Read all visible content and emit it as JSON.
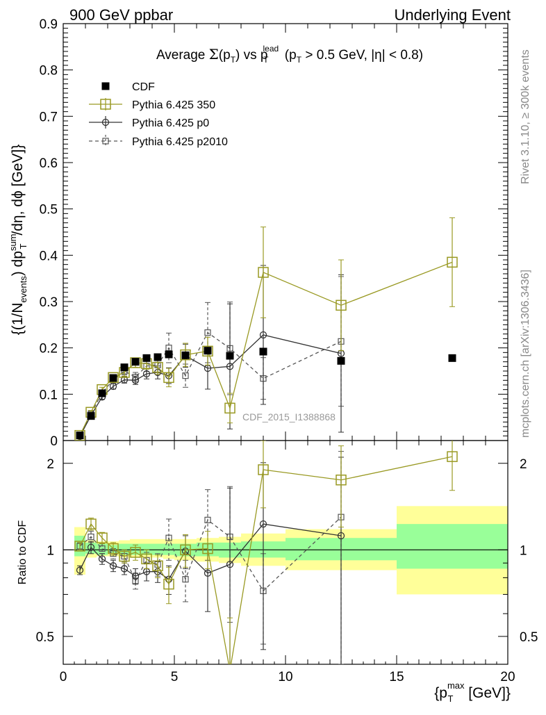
{
  "header": {
    "left": "900 GeV ppbar",
    "right": "Underlying Event"
  },
  "side_labels": {
    "rivet": "Rivet 3.1.10, ≥ 300k events",
    "mcplots": "mcplots.cern.ch [arXiv:1306.3436]"
  },
  "watermark": "CDF_2015_I1388868",
  "chart_data": [
    {
      "type": "scatter",
      "title": "Average Σ(p_T) vs p_T^lead (p_T > 0.5 GeV, |η| < 0.8)",
      "ylabel": "{(1/N_events) dp_T^sum/dη, dϕ [GeV]}",
      "xlim": [
        0,
        20
      ],
      "ylim": [
        0,
        0.9
      ],
      "yticks": [
        "0",
        "0.1",
        "0.2",
        "0.3",
        "0.4",
        "0.5",
        "0.6",
        "0.7",
        "0.8",
        "0.9"
      ],
      "legend_position": "top-left",
      "series": [
        {
          "name": "CDF",
          "color": "#000000",
          "marker": "filled-square",
          "line": "none",
          "x": [
            0.75,
            1.25,
            1.75,
            2.25,
            2.75,
            3.25,
            3.75,
            4.25,
            4.75,
            5.5,
            6.5,
            7.5,
            9.0,
            12.5,
            17.5
          ],
          "y": [
            0.011,
            0.053,
            0.102,
            0.135,
            0.158,
            0.17,
            0.178,
            0.18,
            0.186,
            0.184,
            0.194,
            0.183,
            0.192,
            0.172,
            0.178
          ]
        },
        {
          "name": "Pythia 6.425 350",
          "color": "#999922",
          "marker": "open-square",
          "line": "solid",
          "x": [
            0.75,
            1.25,
            1.75,
            2.25,
            2.75,
            3.25,
            3.75,
            4.25,
            4.75,
            5.5,
            6.5,
            7.5,
            9.0,
            12.5,
            17.5
          ],
          "y": [
            0.011,
            0.061,
            0.11,
            0.136,
            0.147,
            0.168,
            0.166,
            0.158,
            0.136,
            0.185,
            0.193,
            0.07,
            0.363,
            0.292,
            0.385
          ],
          "err": [
            0.002,
            0.004,
            0.005,
            0.006,
            0.008,
            0.01,
            0.012,
            0.015,
            0.02,
            0.025,
            0.03,
            0.032,
            0.098,
            0.098,
            0.096
          ]
        },
        {
          "name": "Pythia 6.425 p0",
          "color": "#333333",
          "marker": "open-circle",
          "line": "solid",
          "x": [
            0.75,
            1.25,
            1.75,
            2.25,
            2.75,
            3.25,
            3.75,
            4.25,
            4.75,
            5.5,
            6.5,
            7.5,
            9.0,
            12.5
          ],
          "y": [
            0.009,
            0.054,
            0.094,
            0.117,
            0.131,
            0.13,
            0.144,
            0.147,
            0.14,
            0.183,
            0.156,
            0.16,
            0.228,
            0.188
          ],
          "err": [
            0.002,
            0.004,
            0.005,
            0.006,
            0.007,
            0.009,
            0.011,
            0.014,
            0.017,
            0.025,
            0.045,
            0.135,
            0.15,
            0.17
          ]
        },
        {
          "name": "Pythia 6.425 p2010",
          "color": "#555555",
          "marker": "open-square-small",
          "line": "dashed",
          "x": [
            0.75,
            1.25,
            1.75,
            2.25,
            2.75,
            3.25,
            3.75,
            4.25,
            4.75,
            5.5,
            6.5,
            7.5,
            9.0,
            12.5
          ],
          "y": [
            0.011,
            0.058,
            0.103,
            0.131,
            0.15,
            0.137,
            0.161,
            0.163,
            0.2,
            0.14,
            0.233,
            0.199,
            0.134,
            0.214
          ],
          "err": [
            0.002,
            0.004,
            0.005,
            0.006,
            0.008,
            0.01,
            0.012,
            0.015,
            0.032,
            0.025,
            0.065,
            0.1,
            0.045,
            0.14
          ]
        }
      ]
    },
    {
      "type": "scatter",
      "ylabel": "Ratio to CDF",
      "xlabel": "{p_T^max [GeV]}",
      "xlim": [
        0,
        20
      ],
      "ylim": [
        0.4,
        2.4
      ],
      "ylog": true,
      "xticks": [
        "0",
        "5",
        "10",
        "15",
        "20"
      ],
      "yticks": [
        "0.5",
        "1",
        "2"
      ],
      "bands": {
        "x_edges": [
          0.5,
          1.0,
          1.5,
          2.0,
          2.5,
          3.0,
          3.5,
          4.0,
          4.5,
          5.0,
          6.0,
          7.0,
          8.0,
          10.0,
          15.0,
          20.0
        ],
        "inner": [
          [
            0.95,
            1.12
          ],
          [
            0.97,
            1.06
          ],
          [
            0.96,
            1.05
          ],
          [
            0.97,
            1.04
          ],
          [
            0.96,
            1.05
          ],
          [
            0.96,
            1.05
          ],
          [
            0.96,
            1.05
          ],
          [
            0.96,
            1.05
          ],
          [
            0.96,
            1.05
          ],
          [
            0.95,
            1.05
          ],
          [
            0.95,
            1.06
          ],
          [
            0.94,
            1.06
          ],
          [
            0.94,
            1.07
          ],
          [
            0.92,
            1.1
          ],
          [
            0.86,
            1.23
          ]
        ],
        "outer": [
          [
            0.82,
            1.2
          ],
          [
            0.94,
            1.08
          ],
          [
            0.95,
            1.07
          ],
          [
            0.95,
            1.07
          ],
          [
            0.94,
            1.08
          ],
          [
            0.94,
            1.09
          ],
          [
            0.94,
            1.09
          ],
          [
            0.94,
            1.09
          ],
          [
            0.93,
            1.09
          ],
          [
            0.92,
            1.09
          ],
          [
            0.91,
            1.1
          ],
          [
            0.9,
            1.11
          ],
          [
            0.88,
            1.14
          ],
          [
            0.85,
            1.18
          ],
          [
            0.7,
            1.42
          ]
        ],
        "inner_color": "#99ff99",
        "outer_color": "#ffff99"
      },
      "series": [
        {
          "name": "Pythia 6.425 350",
          "color": "#999922",
          "x": [
            0.75,
            1.25,
            1.75,
            2.25,
            2.75,
            3.25,
            3.75,
            4.25,
            4.75,
            5.5,
            6.5,
            7.5,
            9.0,
            12.5,
            17.5
          ],
          "y": [
            1.03,
            1.23,
            1.1,
            1.01,
            0.95,
            0.98,
            0.93,
            0.88,
            0.76,
            1.0,
            1.01,
            0.38,
            1.9,
            1.75,
            2.11
          ],
          "err": [
            0.03,
            0.06,
            0.05,
            0.05,
            0.05,
            0.06,
            0.07,
            0.08,
            0.11,
            0.13,
            0.15,
            0.2,
            0.5,
            0.55,
            0.5
          ]
        },
        {
          "name": "Pythia 6.425 p0",
          "color": "#333333",
          "x": [
            0.75,
            1.25,
            1.75,
            2.25,
            2.75,
            3.25,
            3.75,
            4.25,
            4.75,
            5.5,
            6.5,
            7.5,
            9.0,
            12.5
          ],
          "y": [
            0.85,
            1.02,
            0.93,
            0.88,
            0.86,
            0.81,
            0.84,
            0.84,
            0.79,
            0.99,
            0.83,
            0.89,
            1.23,
            1.12
          ],
          "err": [
            0.03,
            0.05,
            0.04,
            0.04,
            0.04,
            0.05,
            0.06,
            0.07,
            0.09,
            0.13,
            0.22,
            0.75,
            0.78,
            0.98
          ]
        },
        {
          "name": "Pythia 6.425 p2010",
          "color": "#555555",
          "x": [
            0.75,
            1.25,
            1.75,
            2.25,
            2.75,
            3.25,
            3.75,
            4.25,
            4.75,
            5.5,
            6.5,
            7.5,
            9.0,
            12.5
          ],
          "y": [
            1.03,
            1.11,
            1.01,
            0.97,
            0.95,
            0.78,
            0.92,
            0.89,
            1.1,
            0.79,
            1.27,
            1.11,
            0.72,
            1.3
          ],
          "err": [
            0.03,
            0.05,
            0.04,
            0.04,
            0.04,
            0.05,
            0.06,
            0.08,
            0.18,
            0.13,
            0.35,
            0.55,
            0.25,
            0.9
          ]
        }
      ]
    }
  ]
}
